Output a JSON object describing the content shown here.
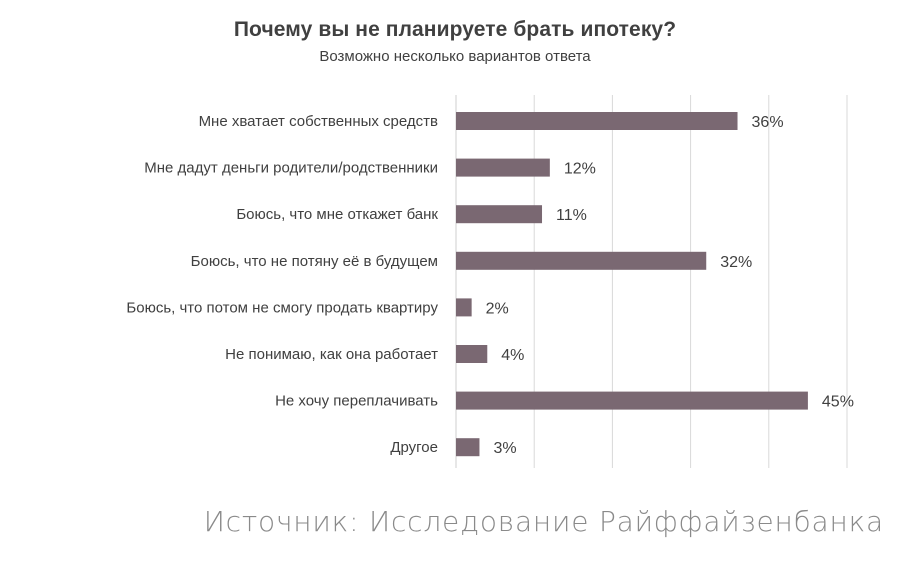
{
  "chart_data": {
    "type": "bar",
    "orientation": "horizontal",
    "title": "Почему вы не планируете брать ипотеку?",
    "subtitle": "Возможно несколько вариантов ответа",
    "categories": [
      "Мне хватает собственных средств",
      "Мне дадут деньги родители/родственники",
      "Боюсь, что мне откажет банк",
      "Боюсь, что не потяну её в будущем",
      "Боюсь, что потом не смогу продать квартиру",
      "Не понимаю, как она работает",
      "Не хочу переплачивать",
      "Другое"
    ],
    "values": [
      36,
      12,
      11,
      32,
      2,
      4,
      45,
      3
    ],
    "value_labels": [
      "36%",
      "12%",
      "11%",
      "32%",
      "2%",
      "4%",
      "45%",
      "3%"
    ],
    "xlim": [
      0,
      50
    ],
    "grid": true,
    "bar_color": "#7a6872"
  },
  "source": "Источник: Исследование Райффайзенбанка"
}
